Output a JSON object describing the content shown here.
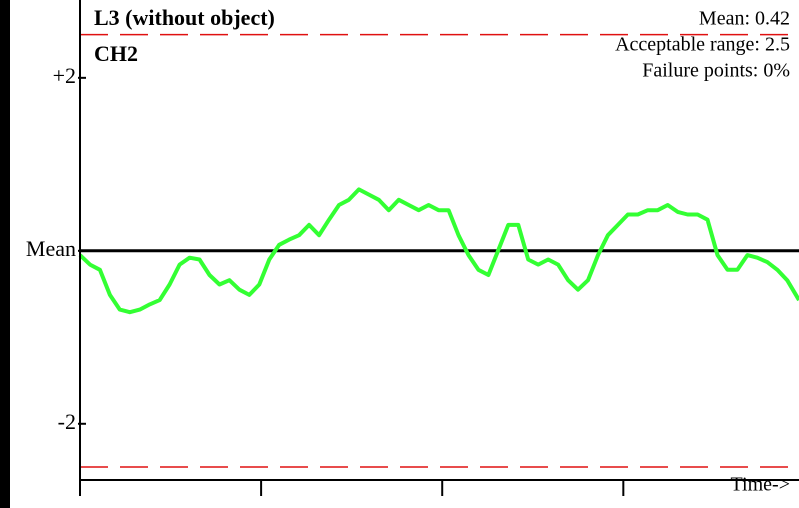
{
  "chart_data": {
    "type": "line",
    "title": "L3 (without object)",
    "subtitle": "CH2",
    "annotations": [
      "Mean: 0.42",
      "Acceptable range: 2.5",
      "Failure points: 0%"
    ],
    "x_label": "Time->",
    "xlim": [
      0,
      397
    ],
    "xticks": [
      0,
      100,
      200,
      300
    ],
    "ylim": [
      -2.65,
      2.9
    ],
    "yticks": [
      {
        "value": 2,
        "label": "+2"
      },
      {
        "value": 0,
        "label": "Mean"
      },
      -2
    ],
    "reference_lines": [
      {
        "value": 0,
        "color": "#000000",
        "dashed": false
      },
      {
        "value": 2.5,
        "color": "#e01010",
        "dashed": true
      },
      {
        "value": -2.5,
        "color": "#e01010",
        "dashed": true
      }
    ],
    "series": [
      {
        "color": "#33ff33",
        "x": [
          0,
          5.5,
          11,
          16.5,
          22,
          27.5,
          33,
          38.5,
          44,
          49.5,
          55,
          60.5,
          66,
          71.5,
          77,
          82.5,
          88,
          93.5,
          99,
          104.5,
          110,
          115.5,
          121,
          126.5,
          132,
          137.5,
          143,
          148.5,
          154,
          159.5,
          165,
          170.5,
          176,
          181.5,
          187,
          192.5,
          198,
          203.5,
          209,
          214.5,
          220,
          225.5,
          231,
          236.5,
          242,
          247.5,
          253,
          258.5,
          264,
          269.5,
          275,
          280.5,
          286,
          291.5,
          297,
          302.5,
          308,
          313.5,
          319,
          324.5,
          330,
          335.5,
          341,
          346.5,
          352,
          357.5,
          363,
          368.5,
          374,
          379.5,
          385,
          390.5,
          397
        ],
        "values": [
          -0.05,
          -0.16,
          -0.22,
          -0.51,
          -0.68,
          -0.71,
          -0.68,
          -0.62,
          -0.57,
          -0.39,
          -0.16,
          -0.08,
          -0.1,
          -0.28,
          -0.39,
          -0.34,
          -0.45,
          -0.51,
          -0.39,
          -0.1,
          0.07,
          0.13,
          0.18,
          0.3,
          0.18,
          0.36,
          0.53,
          0.59,
          0.71,
          0.65,
          0.59,
          0.47,
          0.59,
          0.53,
          0.47,
          0.53,
          0.47,
          0.47,
          0.18,
          -0.05,
          -0.22,
          -0.28,
          0.01,
          0.3,
          0.3,
          -0.1,
          -0.16,
          -0.1,
          -0.16,
          -0.34,
          -0.45,
          -0.34,
          -0.05,
          0.18,
          0.3,
          0.42,
          0.42,
          0.47,
          0.47,
          0.53,
          0.45,
          0.42,
          0.42,
          0.36,
          -0.05,
          -0.22,
          -0.22,
          -0.05,
          -0.08,
          -0.13,
          -0.22,
          -0.34,
          -0.57
        ]
      }
    ]
  }
}
